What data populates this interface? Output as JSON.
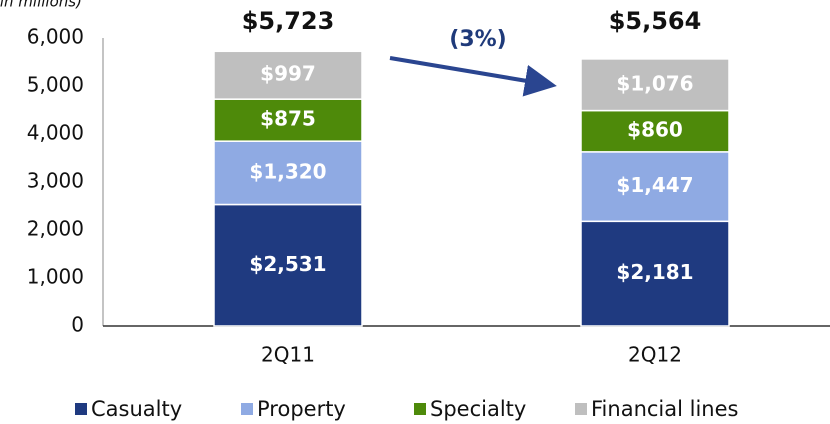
{
  "chart_data": {
    "type": "stacked_bar",
    "subtitle": "(in millions)",
    "categories": [
      "2Q11",
      "2Q12"
    ],
    "series": [
      {
        "name": "Casualty",
        "color": "#1f3a80",
        "values": [
          2531,
          2181
        ],
        "value_labels": [
          "$2,531",
          "$2,181"
        ]
      },
      {
        "name": "Property",
        "color": "#8faae3",
        "values": [
          1320,
          1447
        ],
        "value_labels": [
          "$1,320",
          "$1,447"
        ]
      },
      {
        "name": "Specialty",
        "color": "#4e8a0a",
        "values": [
          875,
          860
        ],
        "value_labels": [
          "$875",
          "$860"
        ]
      },
      {
        "name": "Financial lines",
        "color": "#bfbfbf",
        "values": [
          997,
          1076
        ],
        "value_labels": [
          "$997",
          "$1,076"
        ]
      }
    ],
    "totals": [
      5723,
      5564
    ],
    "total_labels": [
      "$5,723",
      "$5,564"
    ],
    "change_label": "(3%)",
    "ylim": [
      0,
      6000
    ],
    "yticks": [
      0,
      {
        "value": 1000,
        "label": "1,000"
      },
      {
        "value": 2000,
        "label": "2,000"
      },
      {
        "value": 3000,
        "label": "3,000"
      },
      {
        "value": 4000,
        "label": "4,000"
      },
      {
        "value": 5000,
        "label": "5,000"
      },
      {
        "value": 6000,
        "label": "6,000"
      }
    ],
    "legend": "bottom"
  }
}
